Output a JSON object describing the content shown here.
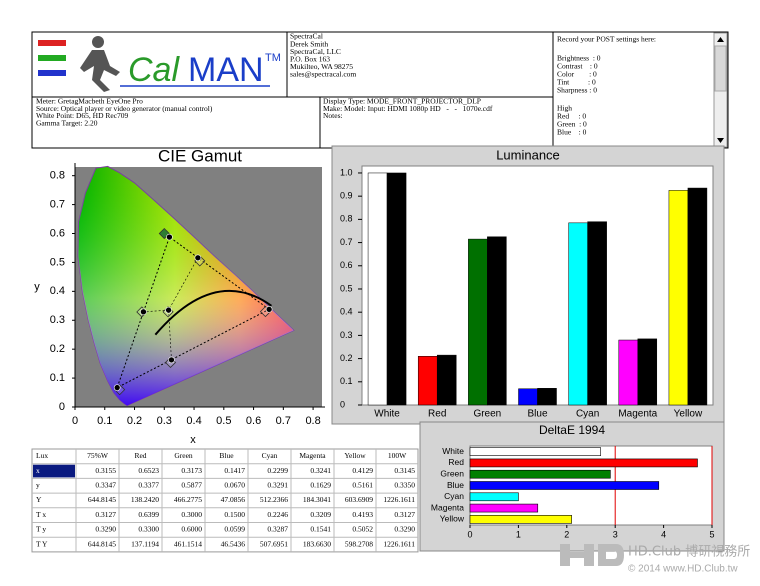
{
  "header": {
    "logo_left": "Cal",
    "logo_right": "MAN",
    "trademark": "TM",
    "contact": [
      "SpectraCal",
      "Derek Smith",
      "SpectraCal, LLC",
      "P.O. Box 163",
      "Mukilteo, WA 98275",
      "sales@spectracal.com"
    ],
    "post_title": "Record your POST settings here:",
    "post": [
      "Brightness  : 0",
      "Contrast    : 0",
      "Color        : 0",
      "Tint          : 0",
      "Sharpness : 0"
    ],
    "post_high": [
      "High",
      "Red     : 0",
      "Green  : 0",
      "Blue    : 0"
    ],
    "meter": [
      "Meter: GretagMacbeth EyeOne Pro",
      "Source: Optical player or video generator (manual control)",
      "White Point: D65, HD Rec709",
      "Gamma Target: 2.20"
    ],
    "display": [
      "Display Type: MODE_FRONT_PROJECTOR_DLP",
      "Make: Model: Input: HDMI 1080p HD   -   -   1070e.cdf",
      "Notes:"
    ]
  },
  "chart_data": [
    {
      "type": "scatter",
      "title": "CIE Gamut",
      "x_label": "x",
      "y_label": "y",
      "xlim": [
        0,
        0.84
      ],
      "ylim": [
        0,
        0.83
      ],
      "xticks": [
        0,
        0.1,
        0.2,
        0.3,
        0.4,
        0.5,
        0.6,
        0.7,
        0.8
      ],
      "yticks": [
        0,
        0.1,
        0.2,
        0.3,
        0.4,
        0.5,
        0.6,
        0.7,
        0.8
      ],
      "series": [
        {
          "marker": "diamond",
          "colors": [
            "#ffffff",
            "#ffffff",
            "#2e7d32",
            "#ffffff",
            "#ffffff",
            "#ffffff",
            "#ffffff"
          ],
          "x": [
            0.3127,
            0.6399,
            0.3,
            0.15,
            0.2246,
            0.3209,
            0.4193
          ],
          "y": [
            0.329,
            0.33,
            0.6,
            0.0599,
            0.3287,
            0.1541,
            0.5052
          ]
        },
        {
          "marker": "circle",
          "color": "#000000",
          "x": [
            0.3145,
            0.6523,
            0.3173,
            0.1417,
            0.2299,
            0.3241,
            0.4129
          ],
          "y": [
            0.335,
            0.3377,
            0.5877,
            0.067,
            0.3291,
            0.1629,
            0.5161
          ]
        }
      ]
    },
    {
      "type": "bar",
      "title": "Luminance",
      "categories": [
        "White",
        "Red",
        "Green",
        "Blue",
        "Cyan",
        "Magenta",
        "Yellow"
      ],
      "ylim": [
        0,
        1.03
      ],
      "yticks": [
        0,
        0.1,
        0.2,
        0.3,
        0.4,
        0.5,
        0.6,
        0.7,
        0.8,
        0.9,
        {
          "value": 1,
          "label": "1.0"
        }
      ],
      "series": [
        {
          "colors": [
            "#ffffff",
            "#ff0000",
            "#007000",
            "#0000ff",
            "#00ffff",
            "#ff00ff",
            "#ffff00"
          ],
          "values": [
            1.0,
            0.21,
            0.715,
            0.07,
            0.785,
            0.28,
            0.925
          ]
        },
        {
          "color": "#000000",
          "values": [
            1.0,
            0.215,
            0.725,
            0.072,
            0.79,
            0.285,
            0.935
          ]
        }
      ]
    },
    {
      "type": "hbar",
      "title": "DeltaE 1994",
      "categories": [
        "White",
        "Red",
        "Green",
        "Blue",
        "Cyan",
        "Magenta",
        "Yellow"
      ],
      "values": [
        2.7,
        4.7,
        2.9,
        3.9,
        1.0,
        1.4,
        2.1
      ],
      "colors": [
        "#ffffff",
        "#ff0000",
        "#008000",
        "#0000ff",
        "#00ffff",
        "#ff00ff",
        "#ffff00"
      ],
      "xlim": [
        0,
        5
      ],
      "xticks": [
        0,
        1,
        2,
        3,
        4,
        5
      ],
      "reference_lines": [
        3,
        5
      ]
    }
  ],
  "table": {
    "header": [
      "Lux",
      "75%W",
      "Red",
      "Green",
      "Blue",
      "Cyan",
      "Magenta",
      "Yellow",
      "100W"
    ],
    "rows": [
      [
        "x",
        "0.3155",
        "0.6523",
        "0.3173",
        "0.1417",
        "0.2299",
        "0.3241",
        "0.4129",
        "0.3145"
      ],
      [
        "y",
        "0.3347",
        "0.3377",
        "0.5877",
        "0.0670",
        "0.3291",
        "0.1629",
        "0.5161",
        "0.3350"
      ],
      [
        "Y",
        "644.8145",
        "138.2420",
        "466.2775",
        "47.0856",
        "512.2366",
        "184.3041",
        "603.6909",
        "1226.1611"
      ],
      [
        "T x",
        "0.3127",
        "0.6399",
        "0.3000",
        "0.1500",
        "0.2246",
        "0.3209",
        "0.4193",
        "0.3127"
      ],
      [
        "T y",
        "0.3290",
        "0.3300",
        "0.6000",
        "0.0599",
        "0.3287",
        "0.1541",
        "0.5052",
        "0.3290"
      ],
      [
        "T Y",
        "644.8145",
        "137.1194",
        "461.1514",
        "46.5436",
        "507.6951",
        "183.6630",
        "598.2708",
        "1226.1611"
      ]
    ]
  },
  "watermark": {
    "brand": "HD.Club 博研視務所",
    "copyright": "© 2014 www.HD.Club.tw"
  }
}
